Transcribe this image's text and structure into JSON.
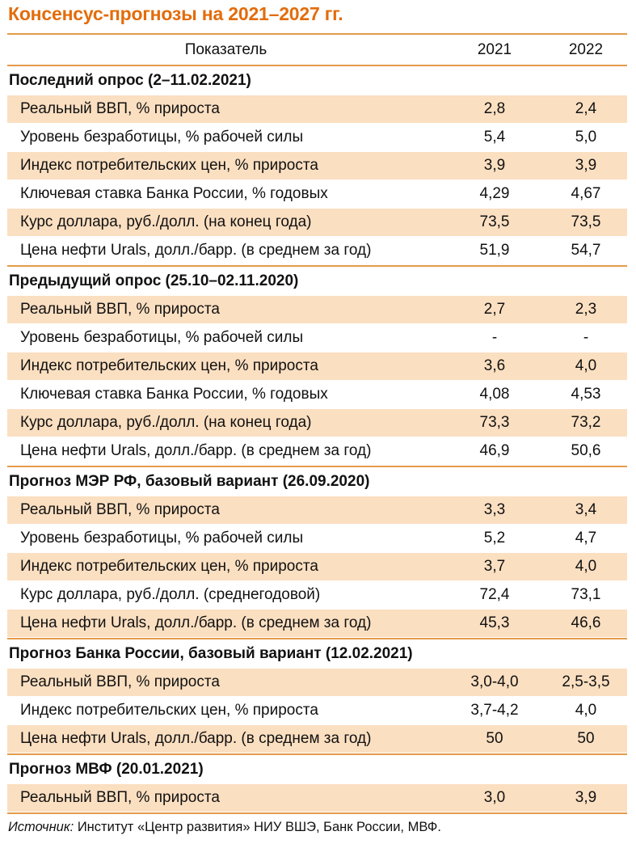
{
  "title": "Консенсус-прогнозы на 2021–2027 гг.",
  "header": {
    "indicator": "Показатель",
    "y2021": "2021",
    "y2022": "2022"
  },
  "sections": [
    {
      "title": "Последний опрос (2–11.02.2021)",
      "rows": [
        {
          "label": "Реальный ВВП, % прироста",
          "v2021": "2,8",
          "v2022": "2,4"
        },
        {
          "label": "Уровень безработицы, % рабочей силы",
          "v2021": "5,4",
          "v2022": "5,0"
        },
        {
          "label": "Индекс потребительских цен, % прироста",
          "v2021": "3,9",
          "v2022": "3,9"
        },
        {
          "label": "Ключевая ставка Банка России, % годовых",
          "v2021": "4,29",
          "v2022": "4,67"
        },
        {
          "label": "Курс доллара, руб./долл. (на конец года)",
          "v2021": "73,5",
          "v2022": "73,5"
        },
        {
          "label": "Цена нефти Urals, долл./барр. (в среднем за год)",
          "v2021": "51,9",
          "v2022": "54,7"
        }
      ]
    },
    {
      "title": "Предыдущий опрос (25.10–02.11.2020)",
      "rows": [
        {
          "label": "Реальный ВВП, % прироста",
          "v2021": "2,7",
          "v2022": "2,3"
        },
        {
          "label": "Уровень безработицы, % рабочей силы",
          "v2021": "-",
          "v2022": "-"
        },
        {
          "label": "Индекс потребительских цен, % прироста",
          "v2021": "3,6",
          "v2022": "4,0"
        },
        {
          "label": "Ключевая ставка Банка России, % годовых",
          "v2021": "4,08",
          "v2022": "4,53"
        },
        {
          "label": "Курс доллара, руб./долл. (на конец года)",
          "v2021": "73,3",
          "v2022": "73,2"
        },
        {
          "label": "Цена нефти Urals, долл./барр. (в среднем за год)",
          "v2021": "46,9",
          "v2022": "50,6"
        }
      ]
    },
    {
      "title": "Прогноз МЭР РФ, базовый вариант (26.09.2020)",
      "rows": [
        {
          "label": "Реальный ВВП, % прироста",
          "v2021": "3,3",
          "v2022": "3,4"
        },
        {
          "label": "Уровень безработицы, % рабочей силы",
          "v2021": "5,2",
          "v2022": "4,7"
        },
        {
          "label": "Индекс потребительских цен, % прироста",
          "v2021": "3,7",
          "v2022": "4,0"
        },
        {
          "label": "Курс доллара, руб./долл. (среднегодовой)",
          "v2021": "72,4",
          "v2022": "73,1"
        },
        {
          "label": "Цена нефти Urals, долл./барр. (в среднем за год)",
          "v2021": "45,3",
          "v2022": "46,6"
        }
      ]
    },
    {
      "title": "Прогноз Банка России, базовый вариант (12.02.2021)",
      "rows": [
        {
          "label": "Реальный ВВП, % прироста",
          "v2021": "3,0-4,0",
          "v2022": "2,5-3,5"
        },
        {
          "label": "Индекс потребительских цен, % прироста",
          "v2021": "3,7-4,2",
          "v2022": "4,0"
        },
        {
          "label": "Цена нефти Urals, долл./барр. (в среднем за год)",
          "v2021": "50",
          "v2022": "50"
        }
      ]
    },
    {
      "title": "Прогноз МВФ (20.01.2021)",
      "rows": [
        {
          "label": "Реальный ВВП, % прироста",
          "v2021": "3,0",
          "v2022": "3,9"
        }
      ]
    }
  ],
  "source": {
    "label": "Источник:",
    "text": " Институт «Центр развития» НИУ ВШЭ, Банк России, МВФ."
  },
  "colors": {
    "accent": "#e36c0a",
    "rule": "#e59b4a",
    "shade": "#fbdfc1"
  }
}
